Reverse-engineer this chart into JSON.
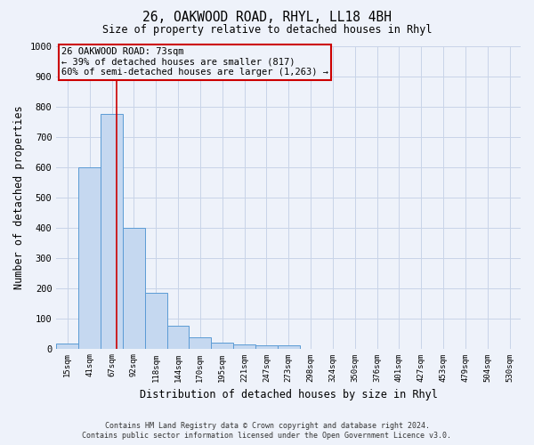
{
  "title1": "26, OAKWOOD ROAD, RHYL, LL18 4BH",
  "title2": "Size of property relative to detached houses in Rhyl",
  "xlabel": "Distribution of detached houses by size in Rhyl",
  "ylabel": "Number of detached properties",
  "bin_labels": [
    "15sqm",
    "41sqm",
    "67sqm",
    "92sqm",
    "118sqm",
    "144sqm",
    "170sqm",
    "195sqm",
    "221sqm",
    "247sqm",
    "273sqm",
    "298sqm",
    "324sqm",
    "350sqm",
    "376sqm",
    "401sqm",
    "427sqm",
    "453sqm",
    "479sqm",
    "504sqm",
    "530sqm"
  ],
  "bar_heights": [
    15,
    600,
    775,
    400,
    185,
    75,
    38,
    18,
    12,
    10,
    10,
    0,
    0,
    0,
    0,
    0,
    0,
    0,
    0,
    0,
    0
  ],
  "bar_color": "#c5d8f0",
  "bar_edge_color": "#5b9bd5",
  "ylim": [
    0,
    1000
  ],
  "yticks": [
    0,
    100,
    200,
    300,
    400,
    500,
    600,
    700,
    800,
    900,
    1000
  ],
  "grid_color": "#c8d4e8",
  "vline_x": 2.23,
  "vline_color": "#cc0000",
  "annotation_lines": [
    "26 OAKWOOD ROAD: 73sqm",
    "← 39% of detached houses are smaller (817)",
    "60% of semi-detached houses are larger (1,263) →"
  ],
  "annotation_box_color": "#cc0000",
  "footer_line1": "Contains HM Land Registry data © Crown copyright and database right 2024.",
  "footer_line2": "Contains public sector information licensed under the Open Government Licence v3.0.",
  "bg_color": "#eef2fa"
}
